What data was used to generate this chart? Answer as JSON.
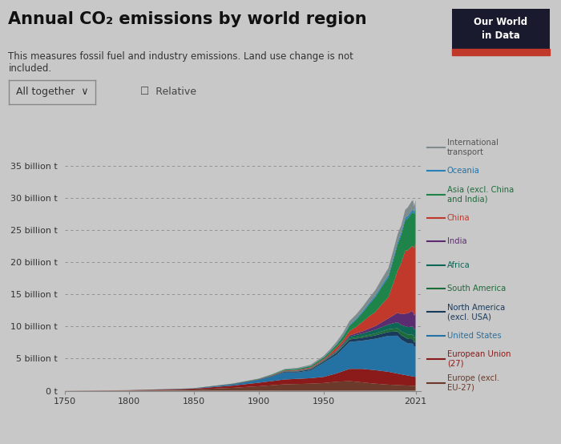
{
  "title": "Annual CO₂ emissions by world region",
  "subtitle": "This measures fossil fuel and industry emissions. Land use change is not\nincluded.",
  "bg_color": "#c8c8c8",
  "plot_bg_color": "#c8c8c8",
  "year_start": 1750,
  "year_end": 2021,
  "ytick_vals": [
    0,
    5000000000.0,
    10000000000.0,
    15000000000.0,
    20000000000.0,
    25000000000.0,
    30000000000.0,
    35000000000.0
  ],
  "ytick_labels": [
    "0 t",
    "5 billion t",
    "10 billion t",
    "15 billion t",
    "20 billion t",
    "25 billion t",
    "30 billion t",
    "35 billion t"
  ],
  "xtick_vals": [
    1750,
    1800,
    1850,
    1900,
    1950,
    2021
  ],
  "stack_colors": [
    "#6b3a2a",
    "#8b1a1a",
    "#2471a3",
    "#1a3a5c",
    "#1e6b3a",
    "#0e6655",
    "#5b2c6f",
    "#c0392b",
    "#1e8449",
    "#2980b9",
    "#7f8c8d"
  ],
  "legend_items": [
    {
      "label": "International\ntransport",
      "color": "#7f8c8d",
      "text_color": "#555555"
    },
    {
      "label": "Oceania",
      "color": "#2980b9",
      "text_color": "#2471a3"
    },
    {
      "label": "Asia (excl. China\nand India)",
      "color": "#1e8449",
      "text_color": "#1e6b3a"
    },
    {
      "label": "China",
      "color": "#c0392b",
      "text_color": "#c0392b"
    },
    {
      "label": "India",
      "color": "#5b2c6f",
      "text_color": "#5b2c6f"
    },
    {
      "label": "Africa",
      "color": "#0e6655",
      "text_color": "#0e6655"
    },
    {
      "label": "South America",
      "color": "#1e6b3a",
      "text_color": "#1e6b3a"
    },
    {
      "label": "North America\n(excl. USA)",
      "color": "#1a3a5c",
      "text_color": "#1a3a5c"
    },
    {
      "label": "United States",
      "color": "#2471a3",
      "text_color": "#2471a3"
    },
    {
      "label": "European Union\n(27)",
      "color": "#8b1a1a",
      "text_color": "#8b1a1a"
    },
    {
      "label": "Europe (excl.\nEU-27)",
      "color": "#6b3a2a",
      "text_color": "#6b3a2a"
    }
  ]
}
